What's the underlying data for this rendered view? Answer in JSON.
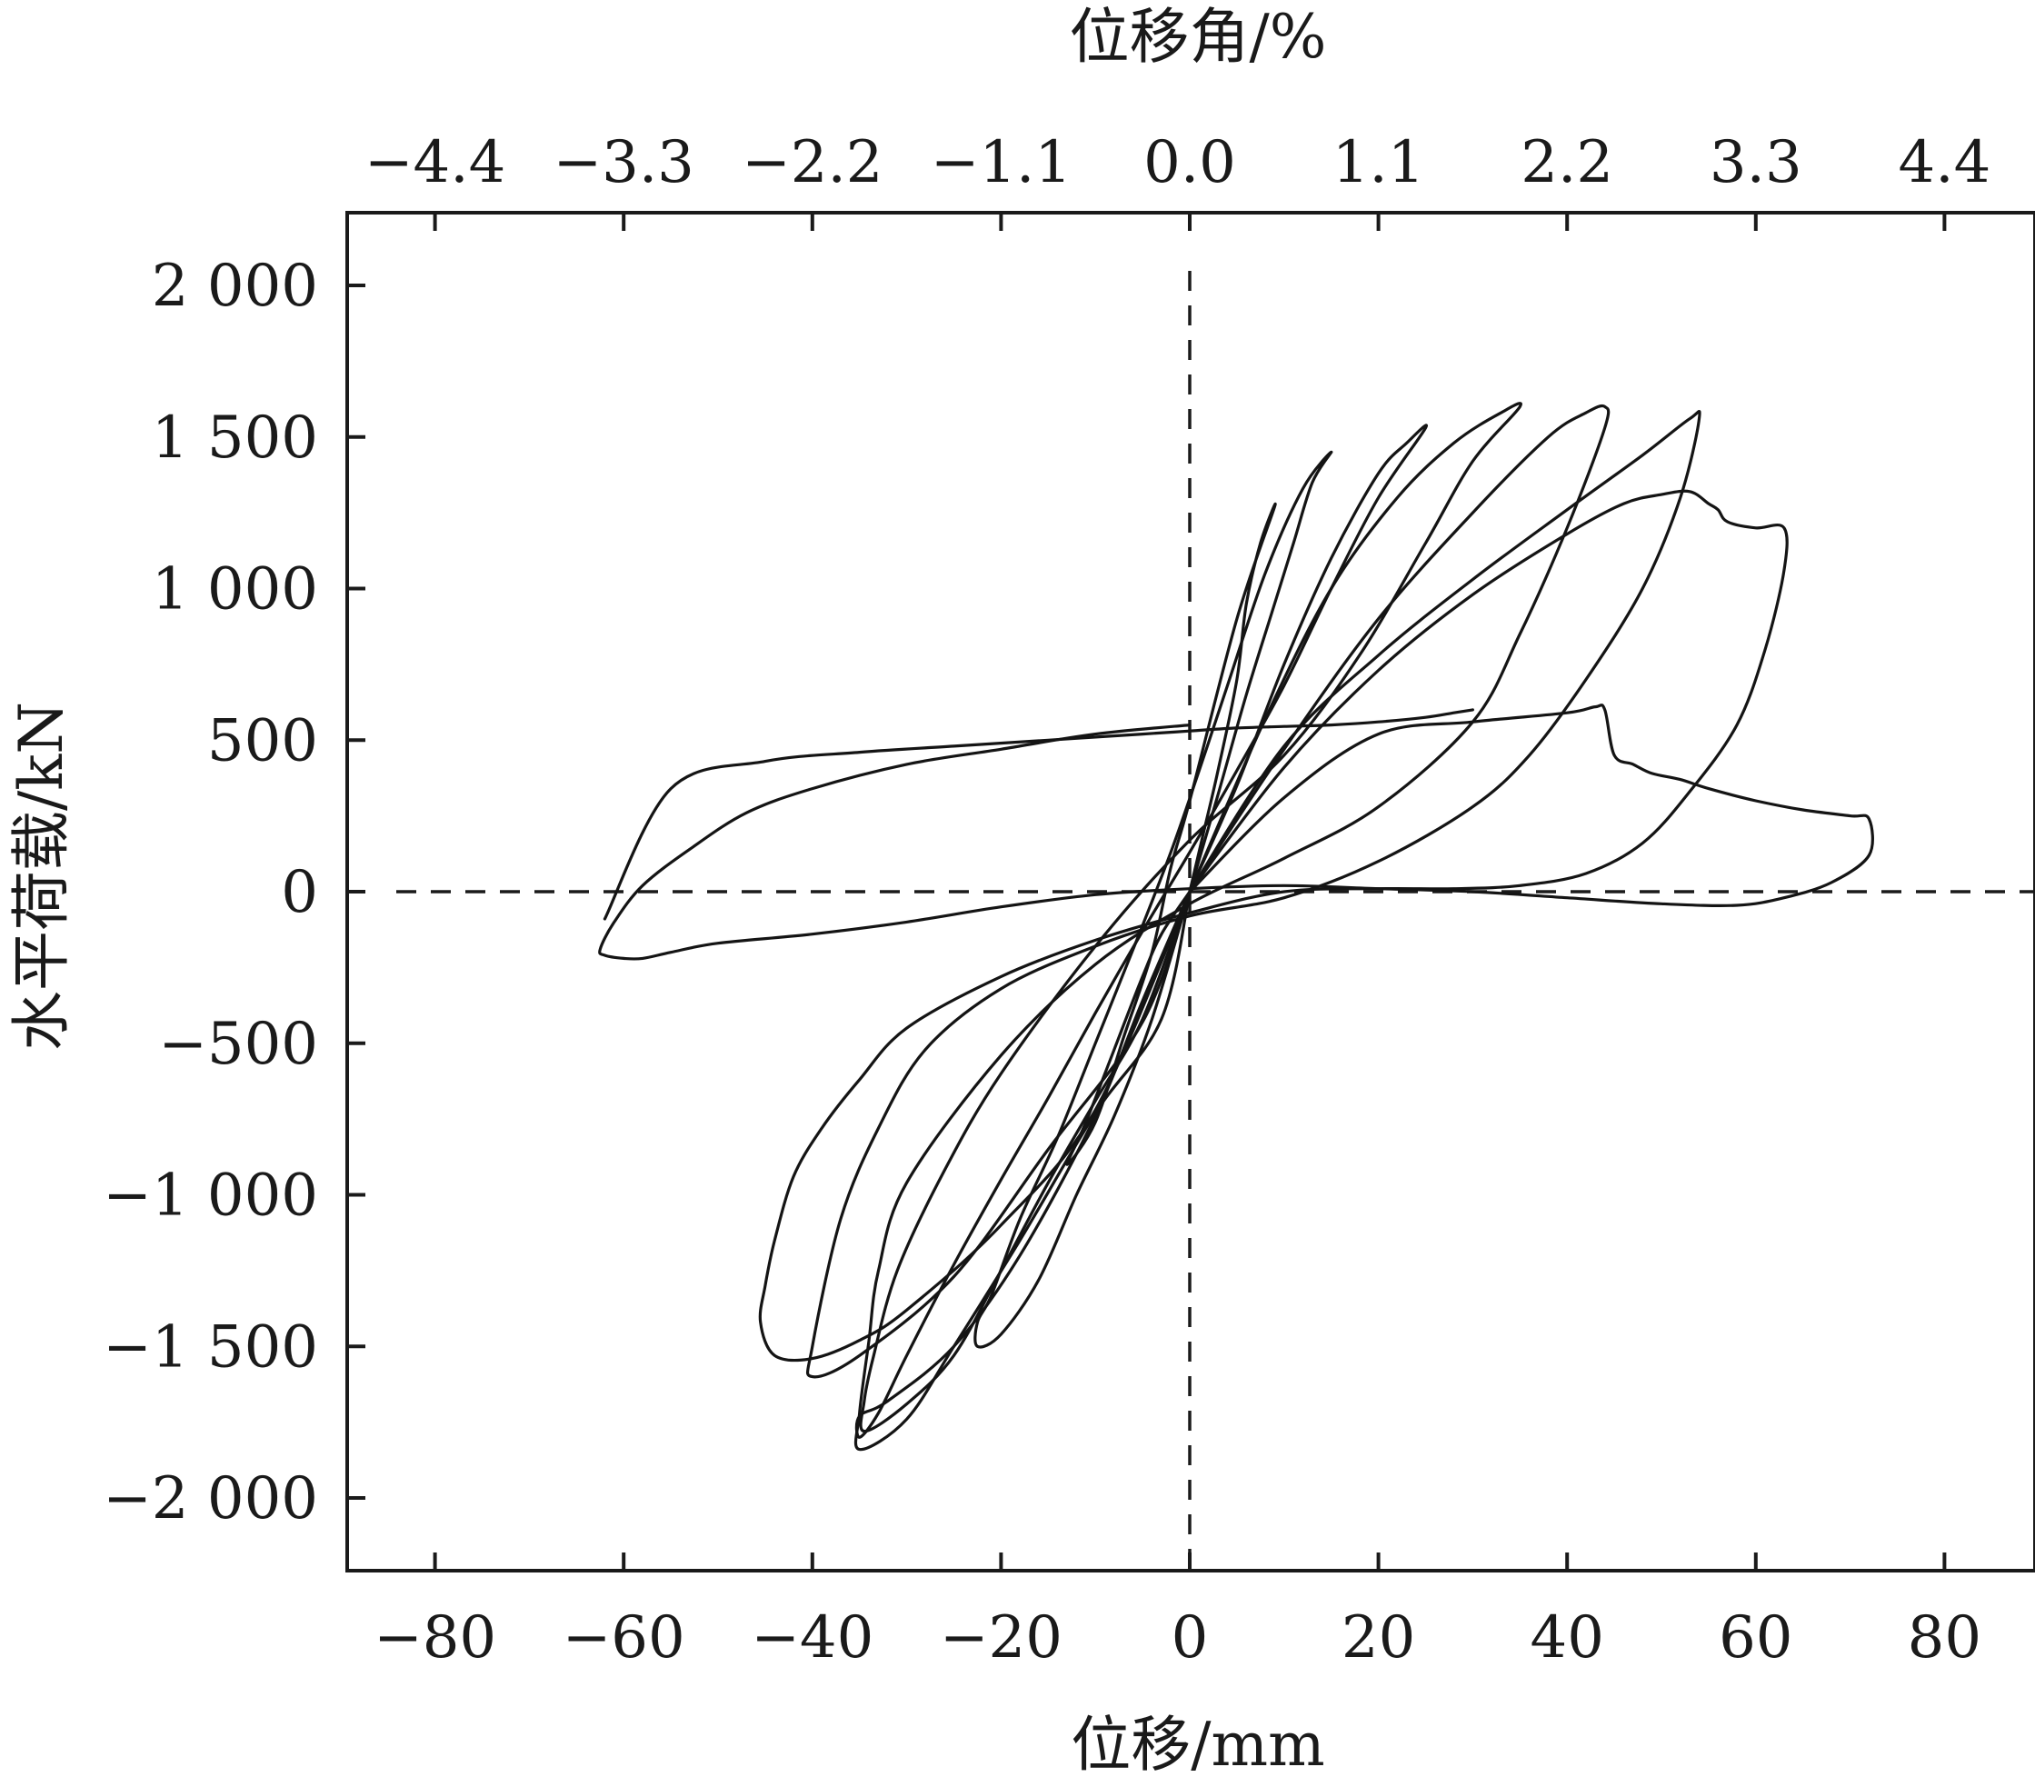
{
  "chart_data": {
    "type": "line",
    "xlabel": "位移/mm",
    "ylabel": "水平荷载/kN",
    "x2label": "位移角/%",
    "xlim": [
      -90,
      89
    ],
    "ylim": [
      -2240,
      2240
    ],
    "x_ticks": [
      -80,
      -60,
      -40,
      -20,
      0,
      20,
      40,
      60,
      80
    ],
    "x_tick_labels": [
      "−80",
      "−60",
      "−40",
      "−20",
      "0",
      "20",
      "40",
      "60",
      "80"
    ],
    "x2_ticks": [
      -4.4,
      -3.3,
      -2.2,
      -1.1,
      0.0,
      1.1,
      2.2,
      3.3,
      4.4
    ],
    "x2_tick_labels": [
      "−4.4",
      "−3.3",
      "−2.2",
      "−1.1",
      "0.0",
      "1.1",
      "2.2",
      "3.3",
      "4.4"
    ],
    "y_ticks": [
      2000,
      1500,
      1000,
      500,
      0,
      -500,
      -1000,
      -1500,
      -2000
    ],
    "y_tick_labels": [
      "2 000",
      "1 500",
      "1 000",
      "500",
      "0",
      "−500",
      "−1 000",
      "−1 500",
      "−2 000"
    ],
    "reference_lines": {
      "x": 0,
      "y": 0,
      "style": "dashed"
    },
    "grid": false,
    "legend": "none",
    "line_color": "#141414",
    "series": [
      {
        "x": [
          0,
          1.5,
          3,
          5,
          6,
          7.5,
          9,
          5,
          0,
          -2,
          -4,
          -7,
          -10,
          -13,
          -11,
          -8,
          -5,
          -3,
          0
        ],
        "y": [
          0,
          200,
          400,
          700,
          950,
          1150,
          1270,
          900,
          300,
          80,
          -200,
          -480,
          -760,
          -900,
          -760,
          -520,
          -280,
          -140,
          0
        ]
      },
      {
        "x": [
          0,
          3,
          6,
          9,
          11,
          13,
          15,
          12,
          8,
          4,
          1,
          -2,
          -6,
          -10,
          -14,
          -18,
          -21,
          -22.5,
          -22.5,
          -20,
          -16,
          -12,
          -8,
          -4,
          0
        ],
        "y": [
          0,
          320,
          650,
          950,
          1150,
          1350,
          1450,
          1330,
          1050,
          680,
          400,
          130,
          -190,
          -500,
          -810,
          -1080,
          -1330,
          -1420,
          -1500,
          -1460,
          -1280,
          -1000,
          -740,
          -420,
          0
        ]
      },
      {
        "x": [
          0,
          5,
          10,
          15,
          20,
          23,
          25,
          20,
          15,
          10,
          5,
          0,
          -5,
          -10,
          -15,
          -20,
          -25,
          -30,
          -33,
          -35,
          -35,
          -32,
          -25,
          -18,
          -10,
          -5,
          0
        ],
        "y": [
          0,
          350,
          750,
          1100,
          1380,
          1480,
          1530,
          1300,
          1000,
          680,
          400,
          130,
          -130,
          -400,
          -680,
          -950,
          -1230,
          -1530,
          -1720,
          -1800,
          -1730,
          -1680,
          -1500,
          -1200,
          -740,
          -360,
          0
        ]
      },
      {
        "x": [
          0,
          8,
          15,
          22,
          28,
          33,
          35,
          30,
          25,
          18,
          10,
          0,
          -10,
          -20,
          -26,
          -31,
          -33.5,
          -34.5,
          -34.5,
          -30,
          -25,
          -20,
          -15,
          -10,
          -5,
          0
        ],
        "y": [
          0,
          570,
          1000,
          1300,
          1480,
          1580,
          1600,
          1420,
          1150,
          780,
          450,
          170,
          -180,
          -600,
          -920,
          -1250,
          -1530,
          -1680,
          -1780,
          -1690,
          -1530,
          -1250,
          -960,
          -690,
          -420,
          0
        ]
      },
      {
        "x": [
          0,
          10,
          20,
          30,
          38,
          42,
          44,
          44,
          40,
          35,
          30,
          20,
          10,
          0,
          -10,
          -20,
          -30,
          -33,
          -34,
          -35,
          -35,
          -30,
          -25,
          -18,
          -10,
          -3,
          0
        ],
        "y": [
          0,
          470,
          900,
          1250,
          1500,
          1580,
          1600,
          1530,
          1200,
          850,
          560,
          280,
          110,
          -40,
          -240,
          -540,
          -960,
          -1250,
          -1480,
          -1720,
          -1840,
          -1740,
          -1500,
          -1150,
          -730,
          -420,
          0
        ]
      },
      {
        "x": [
          0,
          10,
          20,
          30,
          40,
          48,
          53,
          54,
          52,
          48,
          42,
          36,
          30,
          20,
          10,
          0,
          -10,
          -20,
          -28,
          -33,
          -37,
          -40,
          -40,
          -35,
          -25,
          -15,
          -5,
          0
        ],
        "y": [
          0,
          480,
          780,
          1030,
          1260,
          1440,
          1560,
          1560,
          1300,
          1000,
          700,
          450,
          280,
          100,
          -20,
          -80,
          -180,
          -320,
          -520,
          -780,
          -1080,
          -1500,
          -1600,
          -1530,
          -1270,
          -850,
          -430,
          0
        ]
      },
      {
        "x": [
          0,
          10,
          20,
          30,
          40,
          46,
          50,
          53,
          55,
          56,
          57,
          60,
          63,
          63,
          61,
          58,
          53,
          48,
          42,
          35,
          28,
          20,
          10,
          0,
          -10,
          -20,
          -30,
          -35,
          -39,
          -42,
          -44,
          -45,
          -45.5,
          -44,
          -40,
          -35,
          -30,
          -20,
          -10,
          0
        ],
        "y": [
          0,
          410,
          730,
          980,
          1180,
          1280,
          1310,
          1320,
          1280,
          1260,
          1220,
          1200,
          1200,
          1060,
          800,
          550,
          330,
          160,
          60,
          20,
          10,
          10,
          0,
          -70,
          -160,
          -280,
          -450,
          -620,
          -780,
          -940,
          -1150,
          -1300,
          -1420,
          -1530,
          -1540,
          -1480,
          -1380,
          -1100,
          -720,
          0
        ]
      },
      {
        "x": [
          0,
          10,
          20,
          30,
          40,
          43,
          44,
          45,
          47,
          49,
          52,
          55,
          60,
          65,
          70,
          72,
          72,
          68,
          63,
          58,
          50,
          40,
          30,
          20,
          10,
          0,
          -10,
          -20,
          -30,
          -40,
          -50,
          -55,
          -58,
          -60,
          -62,
          -62.5,
          -61,
          -58,
          -53,
          -47,
          -40,
          -30,
          -20,
          -10,
          0
        ],
        "y": [
          0,
          310,
          520,
          560,
          590,
          610,
          600,
          450,
          420,
          390,
          370,
          340,
          300,
          270,
          250,
          240,
          120,
          30,
          -20,
          -45,
          -40,
          -20,
          0,
          10,
          20,
          10,
          -10,
          -50,
          -100,
          -140,
          -170,
          -200,
          -220,
          -220,
          -210,
          -190,
          -100,
          20,
          140,
          260,
          340,
          420,
          470,
          520,
          550
        ]
      },
      {
        "x": [
          -62,
          -55,
          -45,
          -35,
          -25,
          -15,
          -5,
          0,
          5,
          10,
          15,
          20,
          25,
          28,
          30
        ],
        "y": [
          -90,
          340,
          430,
          460,
          480,
          500,
          520,
          530,
          540,
          545,
          550,
          560,
          575,
          590,
          600
        ]
      }
    ]
  }
}
